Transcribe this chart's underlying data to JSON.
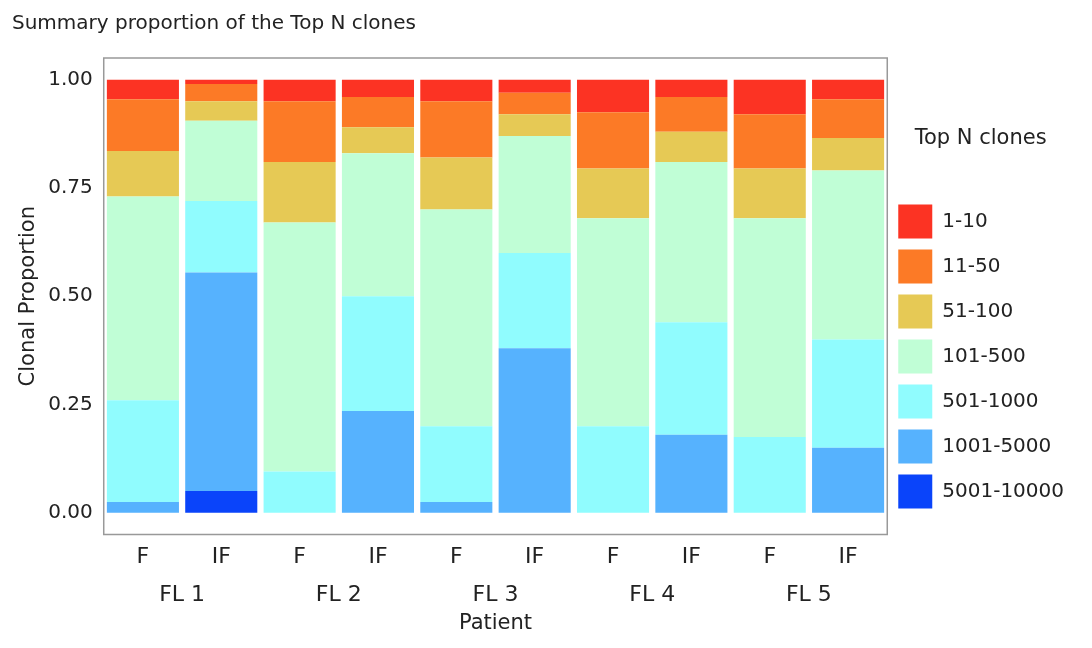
{
  "chart_data": {
    "type": "bar",
    "stacked": true,
    "title": "Summary proportion of the Top N clones",
    "xlabel": "Patient",
    "ylabel": "Clonal Proportion",
    "legend_title": "Top N clones",
    "legend": "right",
    "grid": false,
    "categories": [
      "F",
      "IF",
      "F",
      "IF",
      "F",
      "IF",
      "F",
      "IF",
      "F",
      "IF"
    ],
    "annotations": [
      "FL 1",
      "FL 2",
      "FL 3",
      "FL 4",
      "FL 5"
    ],
    "ylim": [
      -0.05,
      1.05
    ],
    "yticks": [
      {
        "value": 0,
        "label": "0.00"
      },
      {
        "value": 0.25,
        "label": "0.25"
      },
      {
        "value": 0.5,
        "label": "0.50"
      },
      {
        "value": 0.75,
        "label": "0.75"
      },
      {
        "value": 1,
        "label": "1.00"
      }
    ],
    "series": [
      {
        "name": "5001-10000",
        "color": "#0a44fa",
        "values": [
          0,
          0.05,
          0,
          0,
          0,
          0,
          0,
          0,
          0,
          0
        ]
      },
      {
        "name": "1001-5000",
        "color": "#56b2fe",
        "values": [
          0.025,
          0.505,
          0,
          0.235,
          0.025,
          0.38,
          0,
          0.18,
          0,
          0.15
        ]
      },
      {
        "name": "501-1000",
        "color": "#90fcfe",
        "values": [
          0.235,
          0.165,
          0.095,
          0.265,
          0.175,
          0.22,
          0.2,
          0.26,
          0.175,
          0.25
        ]
      },
      {
        "name": "101-500",
        "color": "#c0fed6",
        "values": [
          0.47,
          0.185,
          0.575,
          0.33,
          0.5,
          0.27,
          0.48,
          0.37,
          0.505,
          0.39
        ]
      },
      {
        "name": "51-100",
        "color": "#e6c955",
        "values": [
          0.105,
          0.045,
          0.14,
          0.06,
          0.12,
          0.05,
          0.115,
          0.07,
          0.115,
          0.075
        ]
      },
      {
        "name": "11-50",
        "color": "#fc7a26",
        "values": [
          0.12,
          0.04,
          0.14,
          0.07,
          0.13,
          0.05,
          0.13,
          0.08,
          0.125,
          0.09
        ]
      },
      {
        "name": "1-10",
        "color": "#fc3323",
        "values": [
          0.045,
          0.01,
          0.05,
          0.04,
          0.05,
          0.03,
          0.075,
          0.04,
          0.08,
          0.045
        ]
      }
    ]
  }
}
